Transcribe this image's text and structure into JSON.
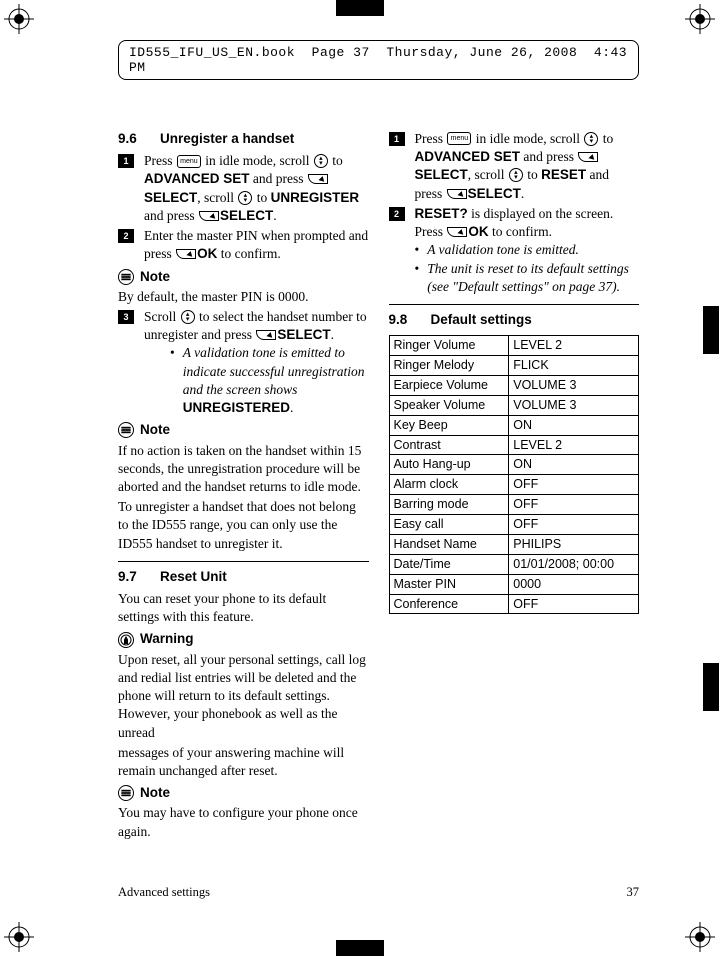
{
  "header": {
    "file": "ID555_IFU_US_EN.book",
    "page": "Page 37",
    "date": "Thursday, June 26, 2008",
    "time": "4:43 PM"
  },
  "left": {
    "s96": {
      "num": "9.6",
      "title": "Unregister a handset",
      "step1": {
        "p1a": "Press ",
        "p1b": " in idle mode, scroll ",
        "p1c": " to ",
        "adv": "ADVANCED SET",
        "p1d": " and press ",
        "sel1": "SELECT",
        "p1e": ", scroll ",
        "p1f": " to ",
        "unreg": "UNREGISTER",
        "p1g": " and press ",
        "sel2": "SELECT",
        "p1h": "."
      },
      "step2": {
        "t1": "Enter the master PIN when prompted and press ",
        "ok": "OK",
        "t2": " to confirm."
      },
      "note1_label": "Note",
      "note1_body": "By default, the master PIN is 0000.",
      "step3": {
        "t1": "Scroll ",
        "t2": " to select the handset number to unregister and press ",
        "sel": "SELECT",
        "t3": ".",
        "b1": "A validation tone is emitted to indicate successful unregistration and the screen shows ",
        "b1b": "UNREGISTERED",
        "b1c": "."
      },
      "note2_label": "Note",
      "note2_body": "If no action is taken on the handset within 15 seconds, the unregistration procedure will be aborted and the handset returns to idle mode.",
      "note2_body2": "To unregister a handset that does not belong to the ID555 range, you can only use the ID555 handset to unregister it."
    },
    "s97": {
      "num": "9.7",
      "title": "Reset Unit",
      "intro": "You can reset your phone to its default settings with this feature.",
      "warn_label": "Warning",
      "warn_body": "Upon reset, all your personal settings, call log and redial list entries will be deleted and the phone will return to its default settings. However, your phonebook as well as the unread"
    }
  },
  "right": {
    "cont": "messages of your answering machine will remain unchanged after reset.",
    "note_label": "Note",
    "note_body": "You may have to configure your phone once again.",
    "step1": {
      "t1": "Press ",
      "t2": " in idle mode, scroll ",
      "t3": " to ",
      "adv": "ADVANCED SET",
      "t4": " and press ",
      "sel1": "SELECT",
      "t5": ", scroll ",
      "t6": " to ",
      "reset": "RESET",
      "t7": " and press ",
      "sel2": "SELECT",
      "t8": "."
    },
    "step2": {
      "resetq": "RESET?",
      "t1": " is displayed on the screen. Press ",
      "ok": "OK",
      "t2": " to confirm.",
      "b1": "A validation tone is emitted.",
      "b2": "The unit is reset to its default settings (see \"Default settings\" on page 37)."
    },
    "s98": {
      "num": "9.8",
      "title": "Default settings"
    },
    "table": {
      "rows": [
        [
          "Ringer Volume",
          "LEVEL 2"
        ],
        [
          "Ringer Melody",
          "FLICK"
        ],
        [
          "Earpiece Volume",
          "VOLUME 3"
        ],
        [
          "Speaker Volume",
          "VOLUME 3"
        ],
        [
          "Key Beep",
          "ON"
        ],
        [
          "Contrast",
          "LEVEL 2"
        ],
        [
          "Auto Hang-up",
          "ON"
        ],
        [
          "Alarm clock",
          "OFF"
        ],
        [
          "Barring mode",
          "OFF"
        ],
        [
          "Easy call",
          "OFF"
        ],
        [
          "Handset Name",
          "PHILIPS"
        ],
        [
          "Date/Time",
          "01/01/2008; 00:00"
        ],
        [
          "Master PIN",
          "0000"
        ],
        [
          "Conference",
          "OFF"
        ]
      ]
    }
  },
  "footer": {
    "section": "Advanced settings",
    "page": "37"
  },
  "key_menu_label": "menu"
}
